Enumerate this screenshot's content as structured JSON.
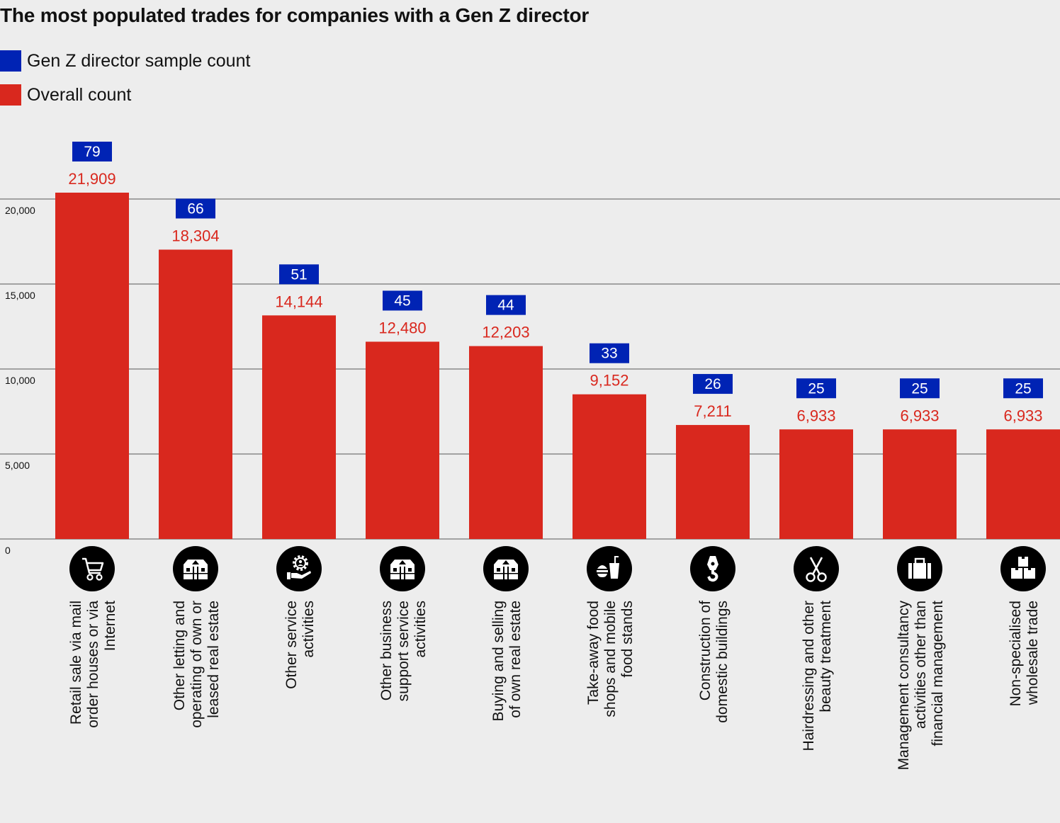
{
  "title": "The most populated trades for companies with a Gen Z director",
  "colors": {
    "background": "#ededed",
    "gen_z": "#0023b4",
    "overall": "#d9281e",
    "gridline": "#8a8a8a",
    "icon_bg": "#000000",
    "icon_fg": "#ffffff"
  },
  "legend": [
    {
      "label": "Gen Z director sample count",
      "color": "#0023b4"
    },
    {
      "label": "Overall count",
      "color": "#d9281e"
    }
  ],
  "chart_data": {
    "type": "bar",
    "title": "The most populated trades for companies with a Gen Z director",
    "xlabel": "",
    "ylabel": "",
    "ylim": [
      0,
      20000
    ],
    "yticks": [
      0,
      5000,
      10000,
      15000,
      20000
    ],
    "ytick_labels": [
      "0",
      "5,000",
      "10,000",
      "15,000",
      "20,000"
    ],
    "grid": true,
    "legend_position": "top-left",
    "categories": [
      "Retail sale via mail order houses or via Internet",
      "Other letting and operating of own or leased real estate",
      "Other service activities",
      "Other business support service activities",
      "Buying and selling of own real estate",
      "Take-away food shops and mobile food stands",
      "Construction of domestic buildings",
      "Hairdressing and other beauty treatment",
      "Management consultancy activities other than financial management",
      "Non-specialised wholesale trade"
    ],
    "category_lines": [
      [
        "Retail sale via mail",
        "order houses or via",
        "Internet"
      ],
      [
        "Other letting and",
        "operating of own or",
        "leased real estate"
      ],
      [
        "Other service",
        "activities"
      ],
      [
        "Other business",
        "support service",
        "activities"
      ],
      [
        "Buying and selling",
        "of own real estate"
      ],
      [
        "Take-away food",
        "shops and mobile",
        "food stands"
      ],
      [
        "Construction of",
        "domestic buildings"
      ],
      [
        "Hairdressing and other",
        "beauty treatment"
      ],
      [
        "Management consultancy",
        "activities other than",
        "financial management"
      ],
      [
        "Non-specialised",
        "wholesale trade"
      ]
    ],
    "icons": [
      "shopping-cart-icon",
      "building-icon",
      "gear-hand-icon",
      "building-icon",
      "building-icon",
      "burger-drink-icon",
      "crane-hook-icon",
      "scissors-icon",
      "briefcase-icon",
      "boxes-icon"
    ],
    "series": [
      {
        "name": "Overall count",
        "color": "#d9281e",
        "values": [
          21909,
          18304,
          14144,
          12480,
          12203,
          9152,
          7211,
          6933,
          6933,
          6933
        ],
        "labels": [
          "21,909",
          "18,304",
          "14,144",
          "12,480",
          "12,203",
          "9,152",
          "7,211",
          "6,933",
          "6,933",
          "6,933"
        ]
      },
      {
        "name": "Gen Z director sample count",
        "color": "#0023b4",
        "values": [
          79,
          66,
          51,
          45,
          44,
          33,
          26,
          25,
          25,
          25
        ],
        "labels": [
          "79",
          "66",
          "51",
          "45",
          "44",
          "33",
          "26",
          "25",
          "25",
          "25"
        ]
      }
    ]
  }
}
